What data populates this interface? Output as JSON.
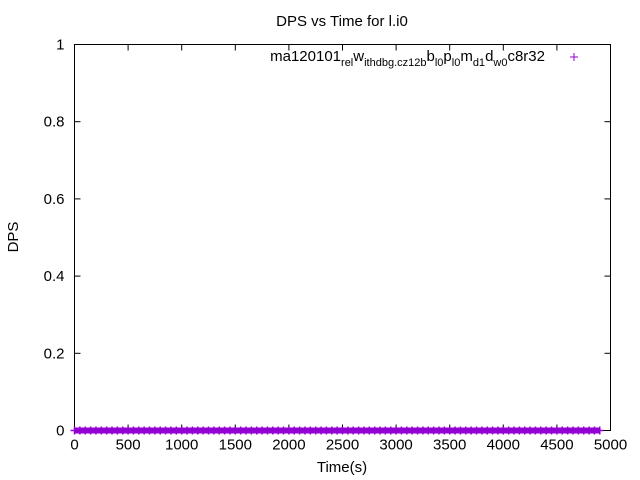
{
  "chart_data": {
    "type": "scatter",
    "title": "DPS vs Time for l.i0",
    "xlabel": "Time(s)",
    "ylabel": "DPS",
    "xlim": [
      0,
      5000
    ],
    "ylim": [
      0,
      1
    ],
    "xticks": [
      "0",
      "500",
      "1000",
      "1500",
      "2000",
      "2500",
      "3000",
      "3500",
      "4000",
      "4500",
      "5000"
    ],
    "yticks": [
      "0",
      "0.2",
      "0.4",
      "0.6",
      "0.8",
      "1"
    ],
    "grid": false,
    "legend_position": "top-right",
    "series": [
      {
        "name": "ma120101_rel_withdbg.cz12b_b_l0_p_l0_m_d1_d_w0_c_8r32",
        "color": "#9400d3",
        "marker": "+",
        "x_range": [
          0,
          4900
        ],
        "y_constant": 0
      }
    ]
  }
}
